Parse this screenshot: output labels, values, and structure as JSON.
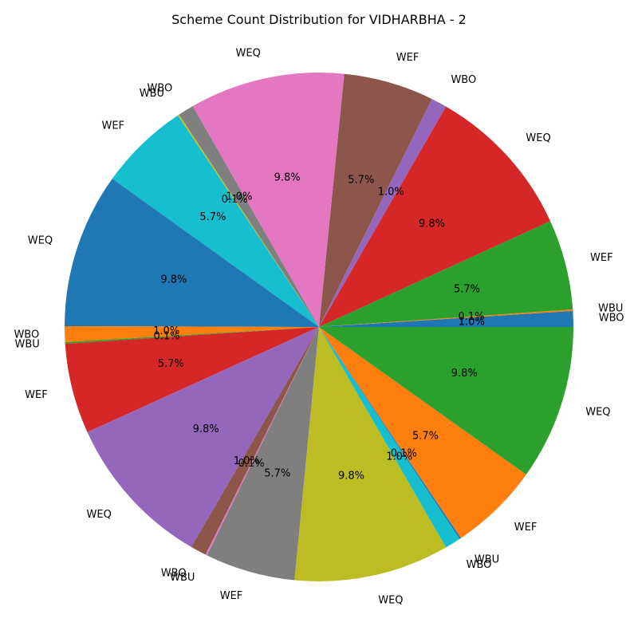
{
  "chart_data": {
    "type": "pie",
    "title": "Scheme Count Distribution for VIDHARBHA - 2",
    "start_angle_deg": 0,
    "direction": "counterclockwise",
    "slices": [
      {
        "label": "WBO",
        "value": 1.0,
        "pct_label": "1.0%",
        "color": "#1f77b4"
      },
      {
        "label": "WBU",
        "value": 0.1,
        "pct_label": "0.1%",
        "color": "#ff7f0e"
      },
      {
        "label": "WEF",
        "value": 5.7,
        "pct_label": "5.7%",
        "color": "#2ca02c"
      },
      {
        "label": "WEQ",
        "value": 9.8,
        "pct_label": "9.8%",
        "color": "#d62728"
      },
      {
        "label": "WBO",
        "value": 1.0,
        "pct_label": "1.0%",
        "color": "#9467bd"
      },
      {
        "label": "WEF",
        "value": 5.7,
        "pct_label": "5.7%",
        "color": "#8c564b"
      },
      {
        "label": "WEQ",
        "value": 9.8,
        "pct_label": "9.8%",
        "color": "#e377c2"
      },
      {
        "label": "WBO",
        "value": 1.0,
        "pct_label": "1.0%",
        "color": "#7f7f7f"
      },
      {
        "label": "WBU",
        "value": 0.1,
        "pct_label": "0.1%",
        "color": "#bcbd22"
      },
      {
        "label": "WEF",
        "value": 5.7,
        "pct_label": "5.7%",
        "color": "#17becf"
      },
      {
        "label": "WEQ",
        "value": 9.8,
        "pct_label": "9.8%",
        "color": "#1f77b4"
      },
      {
        "label": "WBO",
        "value": 1.0,
        "pct_label": "1.0%",
        "color": "#ff7f0e"
      },
      {
        "label": "WBU",
        "value": 0.1,
        "pct_label": "0.1%",
        "color": "#2ca02c"
      },
      {
        "label": "WEF",
        "value": 5.7,
        "pct_label": "5.7%",
        "color": "#d62728"
      },
      {
        "label": "WEQ",
        "value": 9.8,
        "pct_label": "9.8%",
        "color": "#9467bd"
      },
      {
        "label": "WBO",
        "value": 1.0,
        "pct_label": "1.0%",
        "color": "#8c564b"
      },
      {
        "label": "WBU",
        "value": 0.1,
        "pct_label": "0.1%",
        "color": "#e377c2"
      },
      {
        "label": "WEF",
        "value": 5.7,
        "pct_label": "5.7%",
        "color": "#7f7f7f"
      },
      {
        "label": "WEQ",
        "value": 9.8,
        "pct_label": "9.8%",
        "color": "#bcbd22"
      },
      {
        "label": "WBO",
        "value": 1.0,
        "pct_label": "1.0%",
        "color": "#17becf"
      },
      {
        "label": "WBU",
        "value": 0.1,
        "pct_label": "0.1%",
        "color": "#1f77b4"
      },
      {
        "label": "WEF",
        "value": 5.7,
        "pct_label": "5.7%",
        "color": "#ff7f0e"
      },
      {
        "label": "WEQ",
        "value": 9.8,
        "pct_label": "9.8%",
        "color": "#2ca02c"
      }
    ]
  }
}
